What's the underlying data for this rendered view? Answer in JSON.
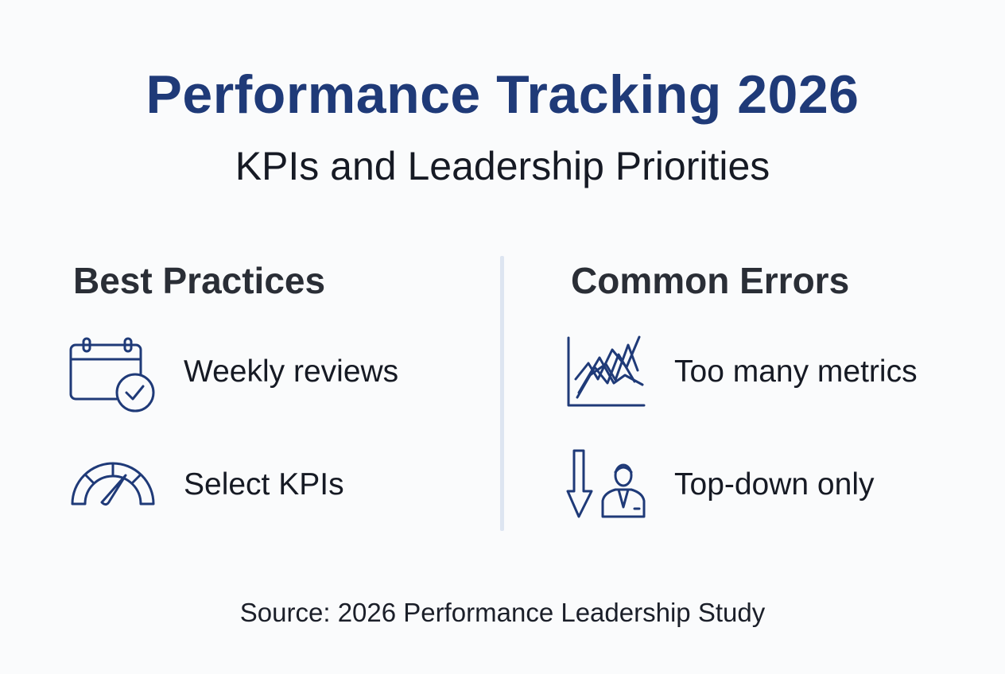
{
  "title": "Performance Tracking 2026",
  "subtitle": "KPIs and Leadership Priorities",
  "best_practices": {
    "heading": "Best Practices",
    "items": [
      {
        "label": "Weekly reviews",
        "icon": "calendar-check-icon"
      },
      {
        "label": "Select KPIs",
        "icon": "gauge-icon"
      }
    ]
  },
  "common_errors": {
    "heading": "Common Errors",
    "items": [
      {
        "label": "Too many metrics",
        "icon": "tangled-chart-icon"
      },
      {
        "label": "Top-down only",
        "icon": "down-arrow-person-icon"
      }
    ]
  },
  "source": "Source: 2026 Performance Leadership Study",
  "colors": {
    "accent": "#1f3a78",
    "text": "#161a24",
    "divider": "#dde5f1",
    "background": "#fafbfc"
  }
}
